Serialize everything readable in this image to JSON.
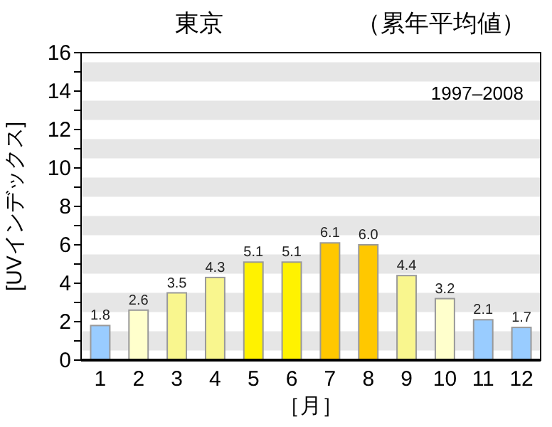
{
  "chart_data": {
    "type": "bar",
    "title": "東京",
    "subtitle": "（累年平均値）",
    "xlabel": "［月］",
    "ylabel": "[UVインデックス]",
    "annotations": [
      "1997–2008"
    ],
    "categories": [
      "1",
      "2",
      "3",
      "4",
      "5",
      "6",
      "7",
      "8",
      "9",
      "10",
      "11",
      "12"
    ],
    "values": [
      1.8,
      2.6,
      3.5,
      4.3,
      5.1,
      5.1,
      6.1,
      6.0,
      4.4,
      3.2,
      2.1,
      1.7
    ],
    "colors": [
      "#99ccff",
      "#ffffcc",
      "#f9f68e",
      "#f9f68e",
      "#fff200",
      "#fff200",
      "#ffc800",
      "#ffc800",
      "#f9f68e",
      "#ffffcc",
      "#99ccff",
      "#99ccff"
    ],
    "value_labels": [
      "1.8",
      "2.6",
      "3.5",
      "4.3",
      "5.1",
      "5.1",
      "6.1",
      "6.0",
      "4.4",
      "3.2",
      "2.1",
      "1.7"
    ],
    "ylim": [
      0,
      16
    ],
    "yticks": [
      0,
      {
        "value": 1,
        "label": null
      },
      2,
      {
        "value": 3,
        "label": null
      },
      4,
      {
        "value": 5,
        "label": null
      },
      6,
      {
        "value": 7,
        "label": null
      },
      8,
      {
        "value": 9,
        "label": null
      },
      10,
      {
        "value": 11,
        "label": null
      },
      12,
      {
        "value": 13,
        "label": null
      },
      14,
      {
        "value": 15,
        "label": null
      },
      16
    ],
    "bands": [
      {
        "axis": "y",
        "from": 0.5,
        "to": 1.5,
        "color": "#e6e6e6"
      },
      {
        "axis": "y",
        "from": 2.5,
        "to": 3.5,
        "color": "#e6e6e6"
      },
      {
        "axis": "y",
        "from": 4.5,
        "to": 5.5,
        "color": "#e6e6e6"
      },
      {
        "axis": "y",
        "from": 6.5,
        "to": 7.5,
        "color": "#e6e6e6"
      },
      {
        "axis": "y",
        "from": 8.5,
        "to": 9.5,
        "color": "#e6e6e6"
      },
      {
        "axis": "y",
        "from": 10.5,
        "to": 11.5,
        "color": "#e6e6e6"
      },
      {
        "axis": "y",
        "from": 12.5,
        "to": 13.5,
        "color": "#e6e6e6"
      },
      {
        "axis": "y",
        "from": 14.5,
        "to": 15.5,
        "color": "#e6e6e6"
      }
    ]
  }
}
